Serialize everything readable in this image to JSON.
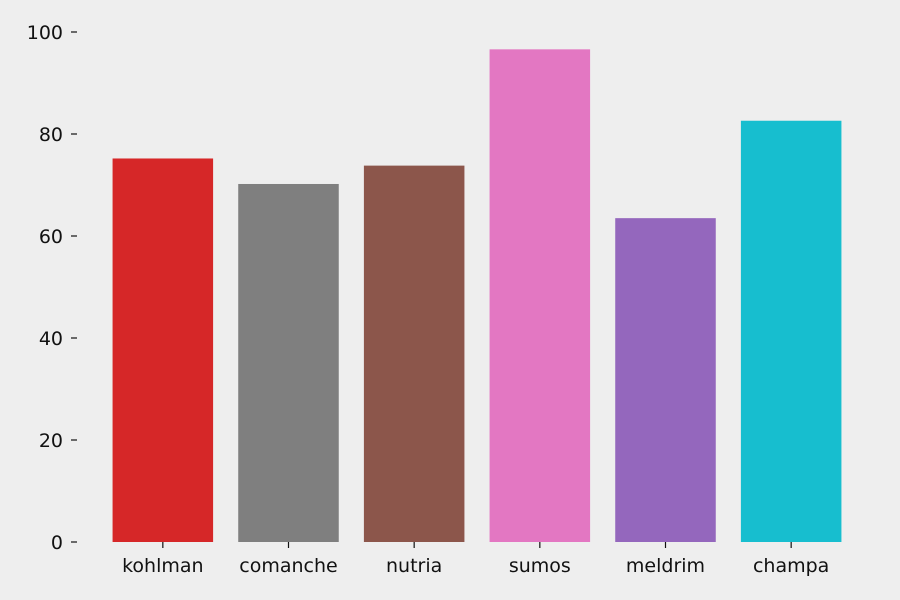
{
  "chart_data": {
    "type": "bar",
    "categories": [
      "kohlman",
      "comanche",
      "nutria",
      "sumos",
      "meldrim",
      "champa"
    ],
    "values": [
      75.2,
      70.2,
      73.8,
      96.6,
      63.5,
      82.6
    ],
    "colors": [
      "#d62728",
      "#7f7f7f",
      "#8c564b",
      "#e377c2",
      "#9467bd",
      "#17becf"
    ],
    "title": "",
    "xlabel": "",
    "ylabel": "",
    "ylim": [
      0,
      100
    ],
    "yticks": [
      0,
      20,
      40,
      60,
      80,
      100
    ],
    "grid": false,
    "background": "#eeeeee"
  }
}
